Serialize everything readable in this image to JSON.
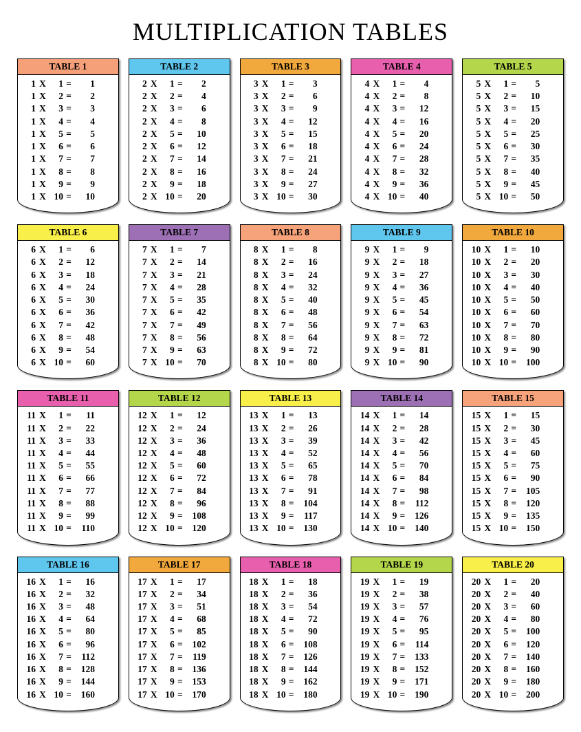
{
  "title": "MULTIPLICATION TABLES",
  "layout": {
    "columns": 5,
    "rows_per_table": 10,
    "card_border_color": "#000000",
    "background": "#ffffff",
    "font_family": "Times New Roman",
    "title_fontsize": 36,
    "header_fontsize": 13.5,
    "row_fontsize": 13.5
  },
  "operator": "X",
  "equals": "=",
  "tables": [
    {
      "n": 1,
      "label": "TABLE 1",
      "header_color": "#f6a07a"
    },
    {
      "n": 2,
      "label": "TABLE 2",
      "header_color": "#5fc6ee"
    },
    {
      "n": 3,
      "label": "TABLE 3",
      "header_color": "#f1a83c"
    },
    {
      "n": 4,
      "label": "TABLE 4",
      "header_color": "#e85fad"
    },
    {
      "n": 5,
      "label": "TABLE 5",
      "header_color": "#b4d64a"
    },
    {
      "n": 6,
      "label": "TABLE 6",
      "header_color": "#f9ef4a"
    },
    {
      "n": 7,
      "label": "TABLE 7",
      "header_color": "#9d6fb5"
    },
    {
      "n": 8,
      "label": "TABLE 8",
      "header_color": "#f6a27a"
    },
    {
      "n": 9,
      "label": "TABLE 9",
      "header_color": "#5fc6ee"
    },
    {
      "n": 10,
      "label": "TABLE 10",
      "header_color": "#f1a83c"
    },
    {
      "n": 11,
      "label": "TABLE 11",
      "header_color": "#e85fad"
    },
    {
      "n": 12,
      "label": "TABLE 12",
      "header_color": "#b4d64a"
    },
    {
      "n": 13,
      "label": "TABLE 13",
      "header_color": "#f9ef4a"
    },
    {
      "n": 14,
      "label": "TABLE 14",
      "header_color": "#9d6fb5"
    },
    {
      "n": 15,
      "label": "TABLE 15",
      "header_color": "#f6a27a"
    },
    {
      "n": 16,
      "label": "TABLE 16",
      "header_color": "#5fc6ee"
    },
    {
      "n": 17,
      "label": "TABLE 17",
      "header_color": "#f1a83c"
    },
    {
      "n": 18,
      "label": "TABLE 18",
      "header_color": "#e85fad"
    },
    {
      "n": 19,
      "label": "TABLE 19",
      "header_color": "#b4d64a"
    },
    {
      "n": 20,
      "label": "TABLE 20",
      "header_color": "#f9ef4a"
    }
  ],
  "rows": {
    "1": [
      [
        1,
        1,
        1
      ],
      [
        1,
        2,
        2
      ],
      [
        1,
        3,
        3
      ],
      [
        1,
        4,
        4
      ],
      [
        1,
        5,
        5
      ],
      [
        1,
        6,
        6
      ],
      [
        1,
        7,
        7
      ],
      [
        1,
        8,
        8
      ],
      [
        1,
        9,
        9
      ],
      [
        1,
        10,
        10
      ]
    ],
    "2": [
      [
        2,
        1,
        2
      ],
      [
        2,
        2,
        4
      ],
      [
        2,
        3,
        6
      ],
      [
        2,
        4,
        8
      ],
      [
        2,
        5,
        10
      ],
      [
        2,
        6,
        12
      ],
      [
        2,
        7,
        14
      ],
      [
        2,
        8,
        16
      ],
      [
        2,
        9,
        18
      ],
      [
        2,
        10,
        20
      ]
    ],
    "3": [
      [
        3,
        1,
        3
      ],
      [
        3,
        2,
        6
      ],
      [
        3,
        3,
        9
      ],
      [
        3,
        4,
        12
      ],
      [
        3,
        5,
        15
      ],
      [
        3,
        6,
        18
      ],
      [
        3,
        7,
        21
      ],
      [
        3,
        8,
        24
      ],
      [
        3,
        9,
        27
      ],
      [
        3,
        10,
        30
      ]
    ],
    "4": [
      [
        4,
        1,
        4
      ],
      [
        4,
        2,
        8
      ],
      [
        4,
        3,
        12
      ],
      [
        4,
        4,
        16
      ],
      [
        4,
        5,
        20
      ],
      [
        4,
        6,
        24
      ],
      [
        4,
        7,
        28
      ],
      [
        4,
        8,
        32
      ],
      [
        4,
        9,
        36
      ],
      [
        4,
        10,
        40
      ]
    ],
    "5": [
      [
        5,
        1,
        5
      ],
      [
        5,
        2,
        10
      ],
      [
        5,
        3,
        15
      ],
      [
        5,
        4,
        20
      ],
      [
        5,
        5,
        25
      ],
      [
        5,
        6,
        30
      ],
      [
        5,
        7,
        35
      ],
      [
        5,
        8,
        40
      ],
      [
        5,
        9,
        45
      ],
      [
        5,
        10,
        50
      ]
    ],
    "6": [
      [
        6,
        1,
        6
      ],
      [
        6,
        2,
        12
      ],
      [
        6,
        3,
        18
      ],
      [
        6,
        4,
        24
      ],
      [
        6,
        5,
        30
      ],
      [
        6,
        6,
        36
      ],
      [
        6,
        7,
        42
      ],
      [
        6,
        8,
        48
      ],
      [
        6,
        9,
        54
      ],
      [
        6,
        10,
        60
      ]
    ],
    "7": [
      [
        7,
        1,
        7
      ],
      [
        7,
        2,
        14
      ],
      [
        7,
        3,
        21
      ],
      [
        7,
        4,
        28
      ],
      [
        7,
        5,
        35
      ],
      [
        7,
        6,
        42
      ],
      [
        7,
        7,
        49
      ],
      [
        7,
        8,
        56
      ],
      [
        7,
        9,
        63
      ],
      [
        7,
        10,
        70
      ]
    ],
    "8": [
      [
        8,
        1,
        8
      ],
      [
        8,
        2,
        16
      ],
      [
        8,
        3,
        24
      ],
      [
        8,
        4,
        32
      ],
      [
        8,
        5,
        40
      ],
      [
        8,
        6,
        48
      ],
      [
        8,
        7,
        56
      ],
      [
        8,
        8,
        64
      ],
      [
        8,
        9,
        72
      ],
      [
        8,
        10,
        80
      ]
    ],
    "9": [
      [
        9,
        1,
        9
      ],
      [
        9,
        2,
        18
      ],
      [
        9,
        3,
        27
      ],
      [
        9,
        4,
        36
      ],
      [
        9,
        5,
        45
      ],
      [
        9,
        6,
        54
      ],
      [
        9,
        7,
        63
      ],
      [
        9,
        8,
        72
      ],
      [
        9,
        9,
        81
      ],
      [
        9,
        10,
        90
      ]
    ],
    "10": [
      [
        10,
        1,
        10
      ],
      [
        10,
        2,
        20
      ],
      [
        10,
        3,
        30
      ],
      [
        10,
        4,
        40
      ],
      [
        10,
        5,
        50
      ],
      [
        10,
        6,
        60
      ],
      [
        10,
        7,
        70
      ],
      [
        10,
        8,
        80
      ],
      [
        10,
        9,
        90
      ],
      [
        10,
        10,
        100
      ]
    ],
    "11": [
      [
        11,
        1,
        11
      ],
      [
        11,
        2,
        22
      ],
      [
        11,
        3,
        33
      ],
      [
        11,
        4,
        44
      ],
      [
        11,
        5,
        55
      ],
      [
        11,
        6,
        66
      ],
      [
        11,
        7,
        77
      ],
      [
        11,
        8,
        88
      ],
      [
        11,
        9,
        99
      ],
      [
        11,
        10,
        110
      ]
    ],
    "12": [
      [
        12,
        1,
        12
      ],
      [
        12,
        2,
        24
      ],
      [
        12,
        3,
        36
      ],
      [
        12,
        4,
        48
      ],
      [
        12,
        5,
        60
      ],
      [
        12,
        6,
        72
      ],
      [
        12,
        7,
        84
      ],
      [
        12,
        8,
        96
      ],
      [
        12,
        9,
        108
      ],
      [
        12,
        10,
        120
      ]
    ],
    "13": [
      [
        13,
        1,
        13
      ],
      [
        13,
        2,
        26
      ],
      [
        13,
        3,
        39
      ],
      [
        13,
        4,
        52
      ],
      [
        13,
        5,
        65
      ],
      [
        13,
        6,
        78
      ],
      [
        13,
        7,
        91
      ],
      [
        13,
        8,
        104
      ],
      [
        13,
        9,
        117
      ],
      [
        13,
        10,
        130
      ]
    ],
    "14": [
      [
        14,
        1,
        14
      ],
      [
        14,
        2,
        28
      ],
      [
        14,
        3,
        42
      ],
      [
        14,
        4,
        56
      ],
      [
        14,
        5,
        70
      ],
      [
        14,
        6,
        84
      ],
      [
        14,
        7,
        98
      ],
      [
        14,
        8,
        112
      ],
      [
        14,
        9,
        126
      ],
      [
        14,
        10,
        140
      ]
    ],
    "15": [
      [
        15,
        1,
        15
      ],
      [
        15,
        2,
        30
      ],
      [
        15,
        3,
        45
      ],
      [
        15,
        4,
        60
      ],
      [
        15,
        5,
        75
      ],
      [
        15,
        6,
        90
      ],
      [
        15,
        7,
        105
      ],
      [
        15,
        8,
        120
      ],
      [
        15,
        9,
        135
      ],
      [
        15,
        10,
        150
      ]
    ],
    "16": [
      [
        16,
        1,
        16
      ],
      [
        16,
        2,
        32
      ],
      [
        16,
        3,
        48
      ],
      [
        16,
        4,
        64
      ],
      [
        16,
        5,
        80
      ],
      [
        16,
        6,
        96
      ],
      [
        16,
        7,
        112
      ],
      [
        16,
        8,
        128
      ],
      [
        16,
        9,
        144
      ],
      [
        16,
        10,
        160
      ]
    ],
    "17": [
      [
        17,
        1,
        17
      ],
      [
        17,
        2,
        34
      ],
      [
        17,
        3,
        51
      ],
      [
        17,
        4,
        68
      ],
      [
        17,
        5,
        85
      ],
      [
        17,
        6,
        102
      ],
      [
        17,
        7,
        119
      ],
      [
        17,
        8,
        136
      ],
      [
        17,
        9,
        153
      ],
      [
        17,
        10,
        170
      ]
    ],
    "18": [
      [
        18,
        1,
        18
      ],
      [
        18,
        2,
        36
      ],
      [
        18,
        3,
        54
      ],
      [
        18,
        4,
        72
      ],
      [
        18,
        5,
        90
      ],
      [
        18,
        6,
        108
      ],
      [
        18,
        7,
        126
      ],
      [
        18,
        8,
        144
      ],
      [
        18,
        9,
        162
      ],
      [
        18,
        10,
        180
      ]
    ],
    "19": [
      [
        19,
        1,
        19
      ],
      [
        19,
        2,
        38
      ],
      [
        19,
        3,
        57
      ],
      [
        19,
        4,
        76
      ],
      [
        19,
        5,
        95
      ],
      [
        19,
        6,
        114
      ],
      [
        19,
        7,
        133
      ],
      [
        19,
        8,
        152
      ],
      [
        19,
        9,
        171
      ],
      [
        19,
        10,
        190
      ]
    ],
    "20": [
      [
        20,
        1,
        20
      ],
      [
        20,
        2,
        40
      ],
      [
        20,
        3,
        60
      ],
      [
        20,
        4,
        80
      ],
      [
        20,
        5,
        100
      ],
      [
        20,
        6,
        120
      ],
      [
        20,
        7,
        140
      ],
      [
        20,
        8,
        160
      ],
      [
        20,
        9,
        180
      ],
      [
        20,
        10,
        200
      ]
    ]
  }
}
